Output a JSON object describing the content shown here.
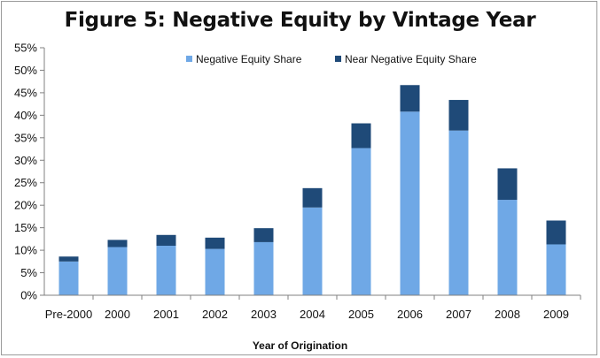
{
  "chart_data": {
    "type": "bar",
    "stacked": true,
    "title": "Figure 5: Negative Equity by Vintage Year",
    "xlabel": "Year of Origination",
    "ylabel": "",
    "categories": [
      "Pre-2000",
      "2000",
      "2001",
      "2002",
      "2003",
      "2004",
      "2005",
      "2006",
      "2007",
      "2008",
      "2009"
    ],
    "series": [
      {
        "name": "Negative Equity Share",
        "color": "#6fa8e6",
        "values": [
          7.5,
          10.7,
          11.0,
          10.3,
          11.8,
          19.5,
          32.7,
          40.8,
          36.6,
          21.2,
          11.3
        ]
      },
      {
        "name": "Near Negative Equity Share",
        "color": "#1f4a78",
        "values": [
          1.1,
          1.6,
          2.4,
          2.5,
          3.1,
          4.3,
          5.5,
          5.9,
          6.8,
          7.0,
          5.3
        ]
      }
    ],
    "ylim": [
      0,
      55
    ],
    "yticks": [
      "0%",
      "5%",
      "10%",
      "15%",
      "20%",
      "25%",
      "30%",
      "35%",
      "40%",
      "45%",
      "50%",
      "55%"
    ],
    "grid": false,
    "legend_position": "top-center"
  }
}
